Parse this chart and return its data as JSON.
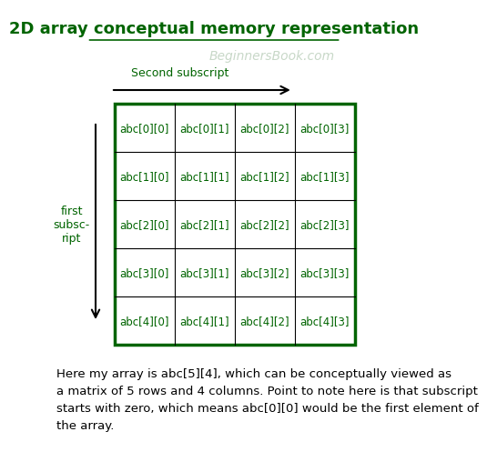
{
  "title": "2D array conceptual memory representation",
  "title_color": "#006400",
  "title_fontsize": 13,
  "watermark": "BeginnersBook.com",
  "watermark_color": "#c8d8c8",
  "second_subscript_label": "Second subscript",
  "first_subscript_label": "first\nsubsc-\nript",
  "label_color": "#006400",
  "rows": 5,
  "cols": 4,
  "cell_texts": [
    [
      "abc[0][0]",
      "abc[0][1]",
      "abc[0][2]",
      "abc[0][3]"
    ],
    [
      "abc[1][0]",
      "abc[1][1]",
      "abc[1][2]",
      "abc[1][3]"
    ],
    [
      "abc[2][0]",
      "abc[2][1]",
      "abc[2][2]",
      "abc[2][3]"
    ],
    [
      "abc[3][0]",
      "abc[3][1]",
      "abc[3][2]",
      "abc[3][3]"
    ],
    [
      "abc[4][0]",
      "abc[4][1]",
      "abc[4][2]",
      "abc[4][3]"
    ]
  ],
  "cell_text_color": "#006400",
  "cell_bg_color": "#ffffff",
  "border_color": "#000000",
  "outer_border_color": "#006400",
  "bg_color": "#ffffff",
  "description": "Here my array is abc[5][4], which can be conceptually viewed as\na matrix of 5 rows and 4 columns. Point to note here is that subscript\nstarts with zero, which means abc[0][0] would be the first element of\nthe array.",
  "desc_color": "#000000",
  "desc_fontsize": 9.5
}
